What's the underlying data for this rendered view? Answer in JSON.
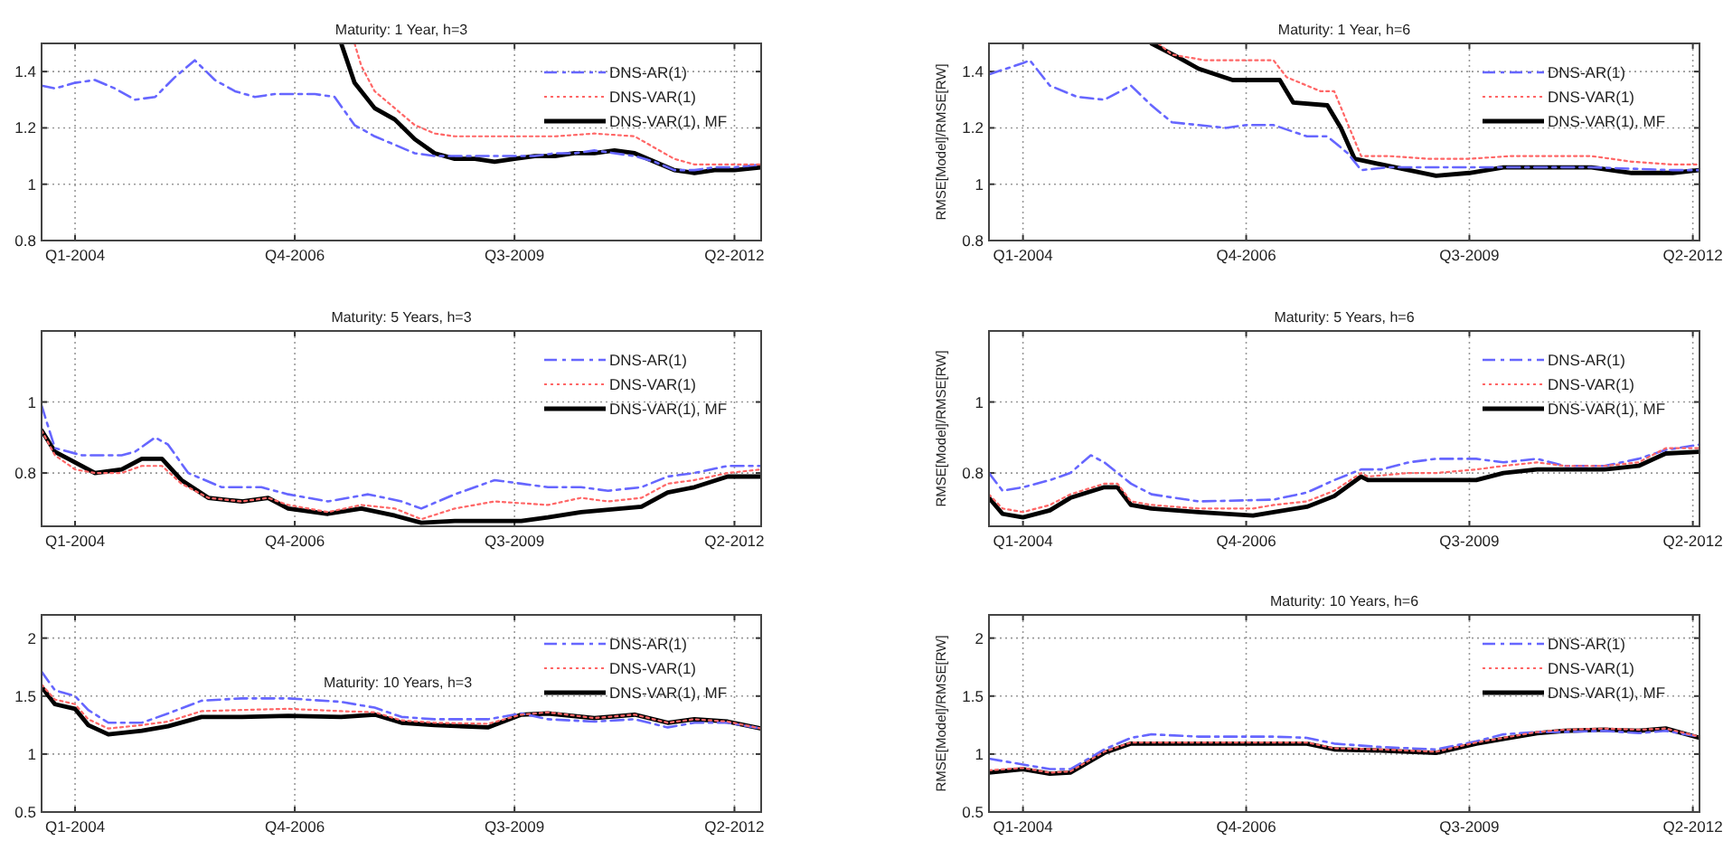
{
  "chart_data": [
    {
      "type": "line",
      "title": "Maturity: 1 Year, h=3",
      "xlim": [
        "2003-08",
        "2012-08"
      ],
      "xticks": [
        {
          "value": "2004-01",
          "label": "Q1-2004"
        },
        {
          "value": "2006-10",
          "label": "Q4-2006"
        },
        {
          "value": "2009-07",
          "label": "Q3-2009"
        },
        {
          "value": "2012-04",
          "label": "Q2-2012"
        }
      ],
      "ylim": [
        0.8,
        1.5
      ],
      "yticks": [
        0.8,
        1,
        1.2,
        1.4
      ],
      "grid": true,
      "legend": "top right",
      "series": [
        {
          "name": "DNS-AR(1)",
          "color": "#6666ff",
          "line_style": "dashed",
          "x": [
            "2003-08",
            "2003-10",
            "2004-01",
            "2004-04",
            "2004-07",
            "2004-10",
            "2005-01",
            "2005-04",
            "2005-07",
            "2005-10",
            "2006-01",
            "2006-04",
            "2006-07",
            "2006-10",
            "2007-01",
            "2007-04",
            "2007-07",
            "2007-10",
            "2008-01",
            "2008-04",
            "2008-07",
            "2008-10",
            "2009-01",
            "2009-04",
            "2009-07",
            "2009-10",
            "2010-01",
            "2010-04",
            "2010-07",
            "2010-10",
            "2011-01",
            "2011-04",
            "2011-07",
            "2011-10",
            "2012-01",
            "2012-04",
            "2012-08"
          ],
          "values": [
            1.35,
            1.34,
            1.36,
            1.37,
            1.34,
            1.3,
            1.31,
            1.38,
            1.44,
            1.37,
            1.33,
            1.31,
            1.32,
            1.32,
            1.32,
            1.31,
            1.21,
            1.17,
            1.14,
            1.11,
            1.1,
            1.1,
            1.1,
            1.1,
            1.1,
            1.1,
            1.11,
            1.11,
            1.12,
            1.11,
            1.1,
            1.08,
            1.05,
            1.05,
            1.06,
            1.06,
            1.07
          ]
        },
        {
          "name": "DNS-VAR(1)",
          "color": "#ff6666",
          "line_style": "dotted",
          "x": [
            "2007-07",
            "2007-08",
            "2007-10",
            "2008-01",
            "2008-04",
            "2008-07",
            "2008-10",
            "2009-04",
            "2010-01",
            "2010-07",
            "2011-01",
            "2011-04",
            "2011-07",
            "2011-10",
            "2012-01",
            "2012-04",
            "2012-08"
          ],
          "values": [
            1.5,
            1.42,
            1.33,
            1.27,
            1.21,
            1.18,
            1.17,
            1.17,
            1.17,
            1.18,
            1.17,
            1.13,
            1.09,
            1.07,
            1.07,
            1.07,
            1.07
          ]
        },
        {
          "name": "DNS-VAR(1), MF",
          "color": "#000000",
          "line_style": "solid",
          "x": [
            "2007-05",
            "2007-07",
            "2007-10",
            "2008-01",
            "2008-04",
            "2008-07",
            "2008-10",
            "2009-01",
            "2009-04",
            "2009-07",
            "2009-10",
            "2010-01",
            "2010-04",
            "2010-07",
            "2010-10",
            "2011-01",
            "2011-04",
            "2011-07",
            "2011-10",
            "2012-01",
            "2012-04",
            "2012-08"
          ],
          "values": [
            1.5,
            1.36,
            1.27,
            1.23,
            1.16,
            1.11,
            1.09,
            1.09,
            1.08,
            1.09,
            1.1,
            1.1,
            1.11,
            1.11,
            1.12,
            1.11,
            1.08,
            1.05,
            1.04,
            1.05,
            1.05,
            1.06
          ]
        }
      ]
    },
    {
      "type": "line",
      "title": "Maturity: 1 Year, h=6",
      "ylabel": "RMSE[Model]/RMSE[RW]",
      "xlim": [
        "2003-08",
        "2012-05"
      ],
      "xticks": [
        {
          "value": "2004-01",
          "label": "Q1-2004"
        },
        {
          "value": "2006-10",
          "label": "Q4-2006"
        },
        {
          "value": "2009-07",
          "label": "Q3-2009"
        },
        {
          "value": "2012-04",
          "label": "Q2-2012"
        }
      ],
      "ylim": [
        0.8,
        1.5
      ],
      "yticks": [
        0.8,
        1,
        1.2,
        1.4
      ],
      "grid": true,
      "legend": "top right",
      "series": [
        {
          "name": "DNS-AR(1)",
          "color": "#6666ff",
          "line_style": "dashed",
          "x": [
            "2003-08",
            "2004-01",
            "2004-02",
            "2004-05",
            "2004-09",
            "2005-01",
            "2005-05",
            "2005-08",
            "2005-11",
            "2006-03",
            "2006-07",
            "2006-10",
            "2007-02",
            "2007-07",
            "2007-10",
            "2008-01",
            "2008-03",
            "2008-07",
            "2009-01",
            "2010-01",
            "2011-01",
            "2012-01",
            "2012-05"
          ],
          "values": [
            1.39,
            1.43,
            1.44,
            1.35,
            1.31,
            1.3,
            1.35,
            1.28,
            1.22,
            1.21,
            1.2,
            1.21,
            1.21,
            1.17,
            1.17,
            1.11,
            1.05,
            1.06,
            1.06,
            1.06,
            1.06,
            1.05,
            1.05
          ]
        },
        {
          "name": "DNS-VAR(1)",
          "color": "#ff6666",
          "line_style": "dotted",
          "x": [
            "2005-09",
            "2005-11",
            "2006-04",
            "2007-02",
            "2007-04",
            "2007-09",
            "2007-11",
            "2008-03",
            "2008-07",
            "2009-01",
            "2009-07",
            "2010-01",
            "2011-01",
            "2011-07",
            "2012-01",
            "2012-05"
          ],
          "values": [
            1.5,
            1.46,
            1.44,
            1.44,
            1.38,
            1.33,
            1.33,
            1.1,
            1.1,
            1.09,
            1.09,
            1.1,
            1.1,
            1.08,
            1.07,
            1.07
          ]
        },
        {
          "name": "DNS-VAR(1), MF",
          "color": "#000000",
          "line_style": "solid",
          "x": [
            "2005-08",
            "2005-12",
            "2006-03",
            "2006-08",
            "2007-03",
            "2007-05",
            "2007-10",
            "2007-12",
            "2008-02",
            "2008-06",
            "2008-10",
            "2009-02",
            "2009-07",
            "2009-12",
            "2010-07",
            "2011-01",
            "2011-07",
            "2012-01",
            "2012-05"
          ],
          "values": [
            1.5,
            1.45,
            1.41,
            1.37,
            1.37,
            1.29,
            1.28,
            1.2,
            1.09,
            1.07,
            1.05,
            1.03,
            1.04,
            1.06,
            1.06,
            1.06,
            1.04,
            1.04,
            1.05
          ]
        }
      ]
    },
    {
      "type": "line",
      "title": "Maturity: 5 Years, h=3",
      "xlim": [
        "2003-08",
        "2012-08"
      ],
      "xticks": [
        {
          "value": "2004-01",
          "label": "Q1-2004"
        },
        {
          "value": "2006-10",
          "label": "Q4-2006"
        },
        {
          "value": "2009-07",
          "label": "Q3-2009"
        },
        {
          "value": "2012-04",
          "label": "Q2-2012"
        }
      ],
      "ylim": [
        0.65,
        1.2
      ],
      "yticks": [
        0.8,
        1
      ],
      "grid": true,
      "legend": "top right",
      "series": [
        {
          "name": "DNS-AR(1)",
          "color": "#6666ff",
          "line_style": "dashed",
          "x": [
            "2003-08",
            "2003-10",
            "2004-02",
            "2004-08",
            "2004-10",
            "2005-01",
            "2005-03",
            "2005-06",
            "2005-11",
            "2006-05",
            "2006-09",
            "2007-03",
            "2007-09",
            "2008-02",
            "2008-05",
            "2008-10",
            "2009-04",
            "2009-08",
            "2009-12",
            "2010-05",
            "2010-09",
            "2011-02",
            "2011-06",
            "2011-10",
            "2012-03",
            "2012-08"
          ],
          "values": [
            0.99,
            0.87,
            0.85,
            0.85,
            0.86,
            0.9,
            0.88,
            0.8,
            0.76,
            0.76,
            0.74,
            0.72,
            0.74,
            0.72,
            0.7,
            0.74,
            0.78,
            0.77,
            0.76,
            0.76,
            0.75,
            0.76,
            0.79,
            0.8,
            0.82,
            0.82
          ]
        },
        {
          "name": "DNS-VAR(1)",
          "color": "#ff6666",
          "line_style": "dotted",
          "x": [
            "2003-08",
            "2003-10",
            "2004-01",
            "2004-04",
            "2004-08",
            "2004-11",
            "2005-02",
            "2005-05",
            "2005-09",
            "2006-02",
            "2006-06",
            "2006-09",
            "2007-03",
            "2007-08",
            "2008-01",
            "2008-05",
            "2008-10",
            "2009-04",
            "2009-12",
            "2010-05",
            "2010-09",
            "2011-02",
            "2011-06",
            "2011-10",
            "2012-03",
            "2012-08"
          ],
          "values": [
            0.92,
            0.85,
            0.81,
            0.8,
            0.8,
            0.82,
            0.82,
            0.77,
            0.73,
            0.72,
            0.73,
            0.71,
            0.69,
            0.71,
            0.7,
            0.67,
            0.7,
            0.72,
            0.71,
            0.73,
            0.72,
            0.73,
            0.77,
            0.78,
            0.8,
            0.81
          ]
        },
        {
          "name": "DNS-VAR(1), MF",
          "color": "#000000",
          "line_style": "solid",
          "x": [
            "2003-08",
            "2003-10",
            "2004-01",
            "2004-04",
            "2004-08",
            "2004-11",
            "2005-02",
            "2005-05",
            "2005-09",
            "2006-02",
            "2006-06",
            "2006-09",
            "2007-03",
            "2007-08",
            "2008-01",
            "2008-05",
            "2008-10",
            "2009-08",
            "2009-12",
            "2010-05",
            "2011-02",
            "2011-06",
            "2011-10",
            "2012-03",
            "2012-08"
          ],
          "values": [
            0.92,
            0.86,
            0.83,
            0.8,
            0.81,
            0.84,
            0.84,
            0.78,
            0.73,
            0.72,
            0.73,
            0.7,
            0.685,
            0.7,
            0.68,
            0.66,
            0.665,
            0.665,
            0.675,
            0.69,
            0.705,
            0.745,
            0.76,
            0.79,
            0.79
          ]
        }
      ]
    },
    {
      "type": "line",
      "title": "Maturity: 5 Years, h=6",
      "ylabel": "RMSE[Model]/RMSE[RW]",
      "xlim": [
        "2003-08",
        "2012-05"
      ],
      "xticks": [
        {
          "value": "2004-01",
          "label": "Q1-2004"
        },
        {
          "value": "2006-10",
          "label": "Q4-2006"
        },
        {
          "value": "2009-07",
          "label": "Q3-2009"
        },
        {
          "value": "2012-04",
          "label": "Q2-2012"
        }
      ],
      "ylim": [
        0.65,
        1.2
      ],
      "yticks": [
        0.8,
        1
      ],
      "grid": true,
      "legend": "top right",
      "series": [
        {
          "name": "DNS-AR(1)",
          "color": "#6666ff",
          "line_style": "dashed",
          "x": [
            "2003-08",
            "2003-10",
            "2004-01",
            "2004-05",
            "2004-08",
            "2004-11",
            "2005-01",
            "2005-05",
            "2005-08",
            "2006-03",
            "2007-02",
            "2007-07",
            "2007-11",
            "2008-03",
            "2008-06",
            "2008-10",
            "2009-02",
            "2009-08",
            "2009-12",
            "2010-05",
            "2010-09",
            "2011-03",
            "2011-08",
            "2011-12",
            "2012-05"
          ],
          "values": [
            0.8,
            0.75,
            0.76,
            0.78,
            0.8,
            0.85,
            0.83,
            0.77,
            0.74,
            0.72,
            0.725,
            0.745,
            0.78,
            0.81,
            0.81,
            0.83,
            0.84,
            0.84,
            0.83,
            0.84,
            0.82,
            0.82,
            0.84,
            0.865,
            0.88
          ]
        },
        {
          "name": "DNS-VAR(1)",
          "color": "#ff6666",
          "line_style": "dotted",
          "x": [
            "2003-08",
            "2003-10",
            "2004-01",
            "2004-05",
            "2004-08",
            "2005-01",
            "2005-03",
            "2005-05",
            "2005-08",
            "2006-03",
            "2006-11",
            "2007-02",
            "2007-07",
            "2007-11",
            "2008-03",
            "2008-04",
            "2008-10",
            "2009-02",
            "2009-08",
            "2009-12",
            "2010-05",
            "2010-09",
            "2011-03",
            "2011-08",
            "2011-12",
            "2012-05"
          ],
          "values": [
            0.74,
            0.7,
            0.69,
            0.71,
            0.74,
            0.77,
            0.77,
            0.72,
            0.71,
            0.7,
            0.7,
            0.71,
            0.72,
            0.75,
            0.8,
            0.79,
            0.8,
            0.8,
            0.81,
            0.82,
            0.83,
            0.82,
            0.82,
            0.83,
            0.87,
            0.87
          ]
        },
        {
          "name": "DNS-VAR(1), MF",
          "color": "#000000",
          "line_style": "solid",
          "x": [
            "2003-08",
            "2003-10",
            "2004-01",
            "2004-05",
            "2004-08",
            "2005-01",
            "2005-03",
            "2005-05",
            "2005-08",
            "2006-03",
            "2006-11",
            "2007-02",
            "2007-07",
            "2007-11",
            "2008-03",
            "2008-04",
            "2008-10",
            "2009-02",
            "2009-08",
            "2009-12",
            "2010-05",
            "2010-09",
            "2011-03",
            "2011-08",
            "2011-12",
            "2012-05"
          ],
          "values": [
            0.73,
            0.685,
            0.675,
            0.695,
            0.73,
            0.76,
            0.76,
            0.71,
            0.7,
            0.69,
            0.68,
            0.69,
            0.705,
            0.735,
            0.79,
            0.78,
            0.78,
            0.78,
            0.78,
            0.8,
            0.81,
            0.81,
            0.81,
            0.82,
            0.855,
            0.86
          ]
        }
      ]
    },
    {
      "type": "line",
      "title": "Maturity: 10 Years, h=3",
      "xlim": [
        "2003-08",
        "2012-08"
      ],
      "xticks": [
        {
          "value": "2004-01",
          "label": "Q1-2004"
        },
        {
          "value": "2006-10",
          "label": "Q4-2006"
        },
        {
          "value": "2009-07",
          "label": "Q3-2009"
        },
        {
          "value": "2012-04",
          "label": "Q2-2012"
        }
      ],
      "ylim": [
        0.5,
        2.2
      ],
      "yticks": [
        0.5,
        1,
        1.5,
        2
      ],
      "grid": true,
      "legend": "top right",
      "series": [
        {
          "name": "DNS-AR(1)",
          "color": "#6666ff",
          "line_style": "dashed",
          "x": [
            "2003-08",
            "2003-10",
            "2004-01",
            "2004-03",
            "2004-06",
            "2004-11",
            "2005-03",
            "2005-08",
            "2006-02",
            "2006-09",
            "2007-05",
            "2007-10",
            "2008-02",
            "2008-07",
            "2009-03",
            "2009-08",
            "2009-12",
            "2010-07",
            "2011-01",
            "2011-06",
            "2011-10",
            "2012-03",
            "2012-08"
          ],
          "values": [
            1.71,
            1.55,
            1.5,
            1.38,
            1.27,
            1.27,
            1.35,
            1.46,
            1.48,
            1.48,
            1.45,
            1.4,
            1.32,
            1.3,
            1.3,
            1.35,
            1.3,
            1.28,
            1.3,
            1.23,
            1.27,
            1.27,
            1.22
          ]
        },
        {
          "name": "DNS-VAR(1)",
          "color": "#ff6666",
          "line_style": "dotted",
          "x": [
            "2003-08",
            "2003-10",
            "2004-01",
            "2004-03",
            "2004-06",
            "2004-11",
            "2005-03",
            "2005-08",
            "2006-02",
            "2006-09",
            "2007-05",
            "2007-10",
            "2008-02",
            "2008-07",
            "2009-03",
            "2009-08",
            "2009-12",
            "2010-07",
            "2011-01",
            "2011-06",
            "2011-10",
            "2012-03",
            "2012-08"
          ],
          "values": [
            1.6,
            1.47,
            1.43,
            1.3,
            1.22,
            1.25,
            1.28,
            1.37,
            1.38,
            1.39,
            1.37,
            1.36,
            1.29,
            1.27,
            1.26,
            1.34,
            1.36,
            1.31,
            1.34,
            1.27,
            1.3,
            1.28,
            1.22
          ]
        },
        {
          "name": "DNS-VAR(1), MF",
          "color": "#000000",
          "line_style": "solid",
          "x": [
            "2003-08",
            "2003-10",
            "2004-01",
            "2004-03",
            "2004-06",
            "2004-11",
            "2005-03",
            "2005-08",
            "2006-02",
            "2006-09",
            "2007-05",
            "2007-10",
            "2008-02",
            "2008-07",
            "2009-03",
            "2009-08",
            "2009-12",
            "2010-07",
            "2011-01",
            "2011-06",
            "2011-10",
            "2012-03",
            "2012-08"
          ],
          "values": [
            1.58,
            1.43,
            1.39,
            1.25,
            1.17,
            1.2,
            1.24,
            1.32,
            1.32,
            1.33,
            1.32,
            1.34,
            1.27,
            1.25,
            1.23,
            1.34,
            1.35,
            1.31,
            1.34,
            1.27,
            1.3,
            1.28,
            1.22
          ]
        }
      ]
    },
    {
      "type": "line",
      "title": "Maturity: 10 Years, h=6",
      "ylabel": "RMSE[Model]/RMSE[RW]",
      "xlim": [
        "2003-08",
        "2012-05"
      ],
      "xticks": [
        {
          "value": "2004-01",
          "label": "Q1-2004"
        },
        {
          "value": "2006-10",
          "label": "Q4-2006"
        },
        {
          "value": "2009-07",
          "label": "Q3-2009"
        },
        {
          "value": "2012-04",
          "label": "Q2-2012"
        }
      ],
      "ylim": [
        0.5,
        2.2
      ],
      "yticks": [
        0.5,
        1,
        1.5,
        2
      ],
      "grid": true,
      "legend": "top right",
      "series": [
        {
          "name": "DNS-AR(1)",
          "color": "#6666ff",
          "line_style": "dashed",
          "x": [
            "2003-08",
            "2004-01",
            "2004-05",
            "2004-08",
            "2005-01",
            "2005-05",
            "2005-08",
            "2006-03",
            "2007-02",
            "2007-07",
            "2007-11",
            "2008-06",
            "2009-02",
            "2009-08",
            "2009-12",
            "2010-05",
            "2010-09",
            "2011-03",
            "2011-08",
            "2011-12",
            "2012-05"
          ],
          "values": [
            0.96,
            0.91,
            0.87,
            0.87,
            1.04,
            1.14,
            1.17,
            1.15,
            1.15,
            1.14,
            1.09,
            1.06,
            1.04,
            1.11,
            1.17,
            1.19,
            1.19,
            1.2,
            1.18,
            1.2,
            1.15
          ]
        },
        {
          "name": "DNS-VAR(1)",
          "color": "#ff6666",
          "line_style": "dotted",
          "x": [
            "2003-08",
            "2004-01",
            "2004-05",
            "2004-08",
            "2005-01",
            "2005-05",
            "2005-08",
            "2006-03",
            "2007-02",
            "2007-07",
            "2007-11",
            "2008-06",
            "2009-02",
            "2009-08",
            "2009-12",
            "2010-05",
            "2010-09",
            "2011-03",
            "2011-08",
            "2011-12",
            "2012-05"
          ],
          "values": [
            0.86,
            0.88,
            0.84,
            0.85,
            1.02,
            1.1,
            1.1,
            1.1,
            1.1,
            1.1,
            1.05,
            1.04,
            1.02,
            1.1,
            1.14,
            1.19,
            1.21,
            1.22,
            1.21,
            1.22,
            1.15
          ]
        },
        {
          "name": "DNS-VAR(1), MF",
          "color": "#000000",
          "line_style": "solid",
          "x": [
            "2003-08",
            "2004-01",
            "2004-05",
            "2004-08",
            "2005-01",
            "2005-05",
            "2005-08",
            "2006-03",
            "2007-02",
            "2007-07",
            "2007-11",
            "2008-06",
            "2009-02",
            "2009-08",
            "2009-12",
            "2010-05",
            "2010-09",
            "2011-03",
            "2011-08",
            "2011-12",
            "2012-05"
          ],
          "values": [
            0.84,
            0.87,
            0.83,
            0.84,
            1.01,
            1.09,
            1.09,
            1.09,
            1.09,
            1.09,
            1.04,
            1.03,
            1.01,
            1.09,
            1.13,
            1.18,
            1.2,
            1.21,
            1.2,
            1.22,
            1.14
          ]
        }
      ]
    }
  ]
}
